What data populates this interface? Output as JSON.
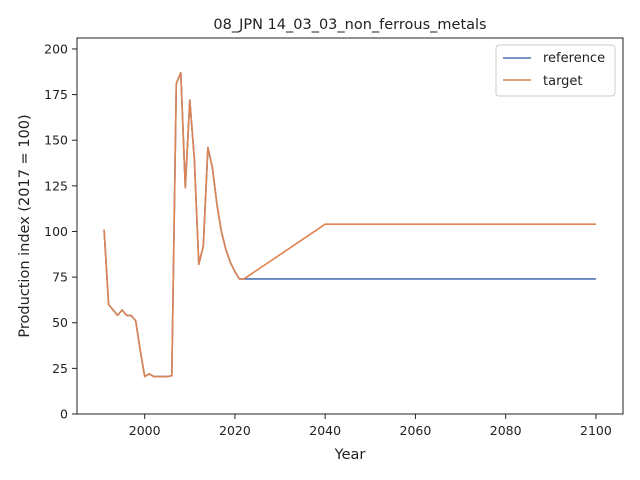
{
  "chart_data": {
    "type": "line",
    "title": "08_JPN 14_03_03_non_ferrous_metals",
    "xlabel": "Year",
    "ylabel": "Production index (2017 = 100)",
    "xlim": [
      1985,
      2106
    ],
    "ylim": [
      0,
      206
    ],
    "xticks": [
      2000,
      2020,
      2040,
      2060,
      2080,
      2100
    ],
    "yticks": [
      0,
      25,
      50,
      75,
      100,
      125,
      150,
      175,
      200
    ],
    "grid": false,
    "legend_position": "top-right",
    "series": [
      {
        "name": "reference",
        "color": "#4c72b0",
        "points": [
          [
            1991,
            101
          ],
          [
            1992,
            60
          ],
          [
            1993,
            57
          ],
          [
            1994,
            54
          ],
          [
            1995,
            57
          ],
          [
            1996,
            54
          ],
          [
            1997,
            54
          ],
          [
            1998,
            51
          ],
          [
            1999,
            35
          ],
          [
            2000,
            20.5
          ],
          [
            2001,
            22
          ],
          [
            2002,
            20.5
          ],
          [
            2003,
            20.5
          ],
          [
            2004,
            20.5
          ],
          [
            2005,
            20.5
          ],
          [
            2006,
            21
          ],
          [
            2007,
            181
          ],
          [
            2008,
            187
          ],
          [
            2009,
            124
          ],
          [
            2010,
            172
          ],
          [
            2011,
            140
          ],
          [
            2012,
            82
          ],
          [
            2013,
            92
          ],
          [
            2014,
            146
          ],
          [
            2015,
            135
          ],
          [
            2016,
            115
          ],
          [
            2017,
            100
          ],
          [
            2018,
            90
          ],
          [
            2019,
            83
          ],
          [
            2020,
            78
          ],
          [
            2021,
            74
          ],
          [
            2022,
            74
          ],
          [
            2100,
            74
          ]
        ]
      },
      {
        "name": "target",
        "color": "#dd8452",
        "points": [
          [
            1991,
            101
          ],
          [
            1992,
            60
          ],
          [
            1993,
            57
          ],
          [
            1994,
            54
          ],
          [
            1995,
            57
          ],
          [
            1996,
            54
          ],
          [
            1997,
            54
          ],
          [
            1998,
            51
          ],
          [
            1999,
            35
          ],
          [
            2000,
            20.5
          ],
          [
            2001,
            22
          ],
          [
            2002,
            20.5
          ],
          [
            2003,
            20.5
          ],
          [
            2004,
            20.5
          ],
          [
            2005,
            20.5
          ],
          [
            2006,
            21
          ],
          [
            2007,
            181
          ],
          [
            2008,
            187
          ],
          [
            2009,
            124
          ],
          [
            2010,
            172
          ],
          [
            2011,
            140
          ],
          [
            2012,
            82
          ],
          [
            2013,
            92
          ],
          [
            2014,
            146
          ],
          [
            2015,
            135
          ],
          [
            2016,
            115
          ],
          [
            2017,
            100
          ],
          [
            2018,
            90
          ],
          [
            2019,
            83
          ],
          [
            2020,
            78
          ],
          [
            2021,
            74
          ],
          [
            2022,
            74
          ],
          [
            2040,
            104
          ],
          [
            2100,
            104
          ]
        ]
      }
    ]
  }
}
